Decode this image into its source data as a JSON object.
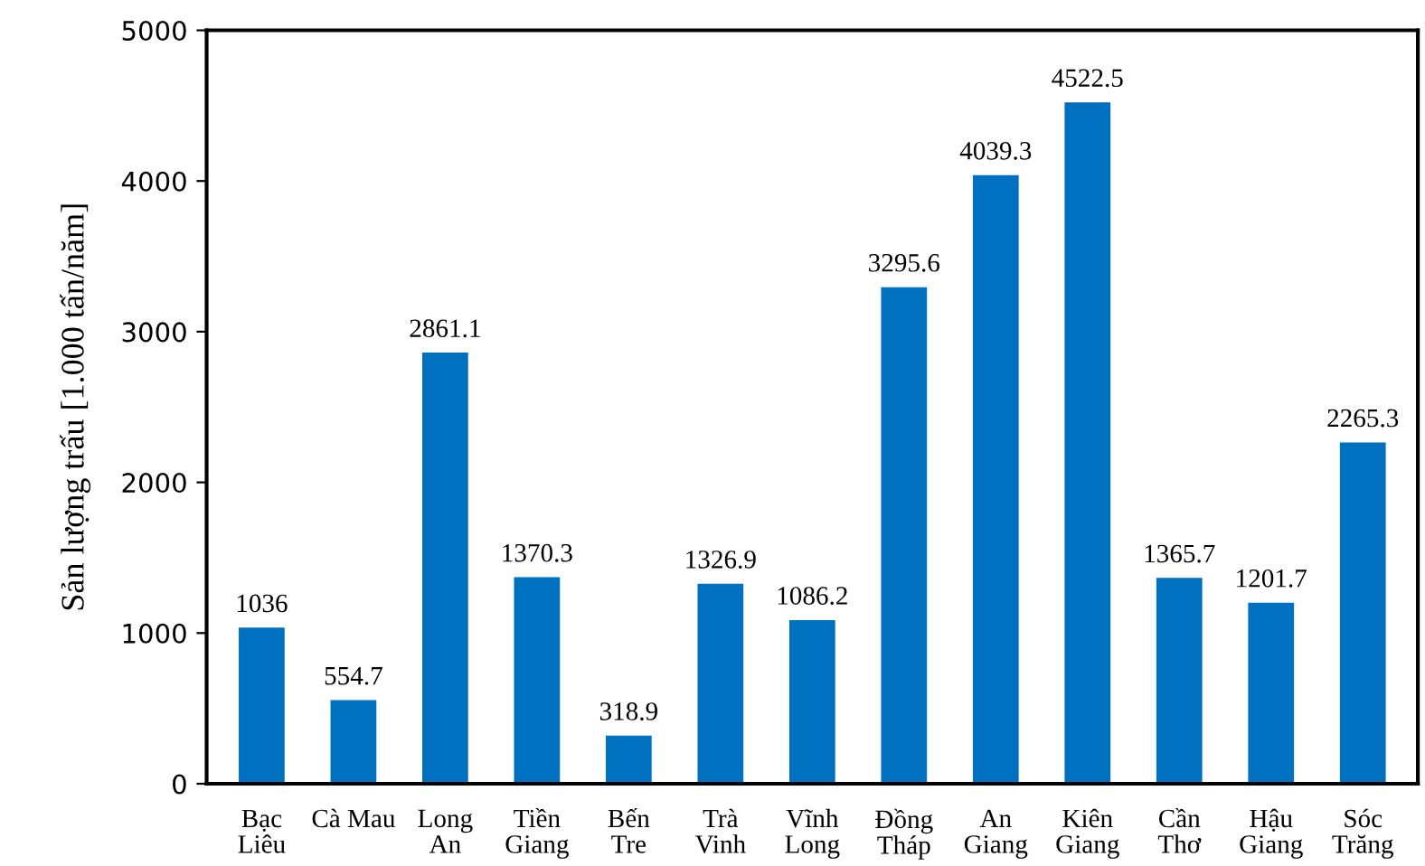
{
  "chart_data": {
    "type": "bar",
    "ylabel": "Sản lượng trấu [1.000 tấn/năm]",
    "categories": [
      "Bạc\nLiêu",
      "Cà Mau",
      "Long\nAn",
      "Tiền\nGiang",
      "Bến\nTre",
      "Trà\nVinh",
      "Vĩnh\nLong",
      "Đồng\nTháp",
      "An\nGiang",
      "Kiên\nGiang",
      "Cần\nThơ",
      "Hậu\nGiang",
      "Sóc\nTrăng"
    ],
    "values": [
      1036,
      554.7,
      2861.1,
      1370.3,
      318.9,
      1326.9,
      1086.2,
      3295.6,
      4039.3,
      4522.5,
      1365.7,
      1201.7,
      2265.3
    ],
    "color": "#0070c0",
    "data_labels": true,
    "ylim": [
      0,
      5000
    ],
    "yticks": [
      0,
      1000,
      2000,
      3000,
      4000,
      5000
    ],
    "grid": false,
    "legend": false
  }
}
